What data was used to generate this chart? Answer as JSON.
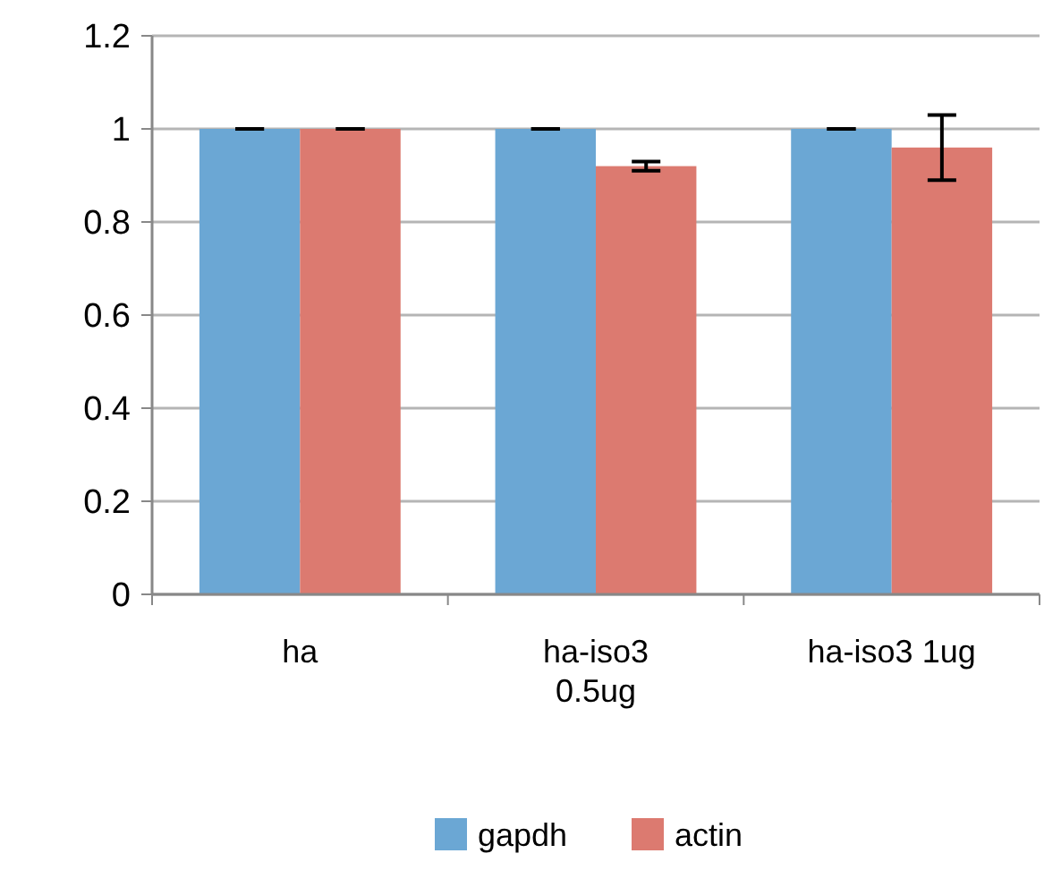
{
  "chart_data": {
    "type": "bar",
    "categories": [
      "ha",
      "ha-iso3 0.5ug",
      "ha-iso3 1ug"
    ],
    "series": [
      {
        "name": "gapdh",
        "color": "#6ba7d4",
        "values": [
          1,
          1,
          1
        ],
        "errors": [
          0,
          0,
          0
        ]
      },
      {
        "name": "actin",
        "color": "#dc7a70",
        "values": [
          1,
          0.92,
          0.96
        ],
        "errors": [
          0,
          0.01,
          0.07
        ]
      }
    ],
    "ylim": [
      0,
      1.2
    ],
    "yticks": [
      0,
      0.2,
      0.4,
      0.6,
      0.8,
      1,
      1.2
    ],
    "grid": "y",
    "legend": "bottom"
  }
}
